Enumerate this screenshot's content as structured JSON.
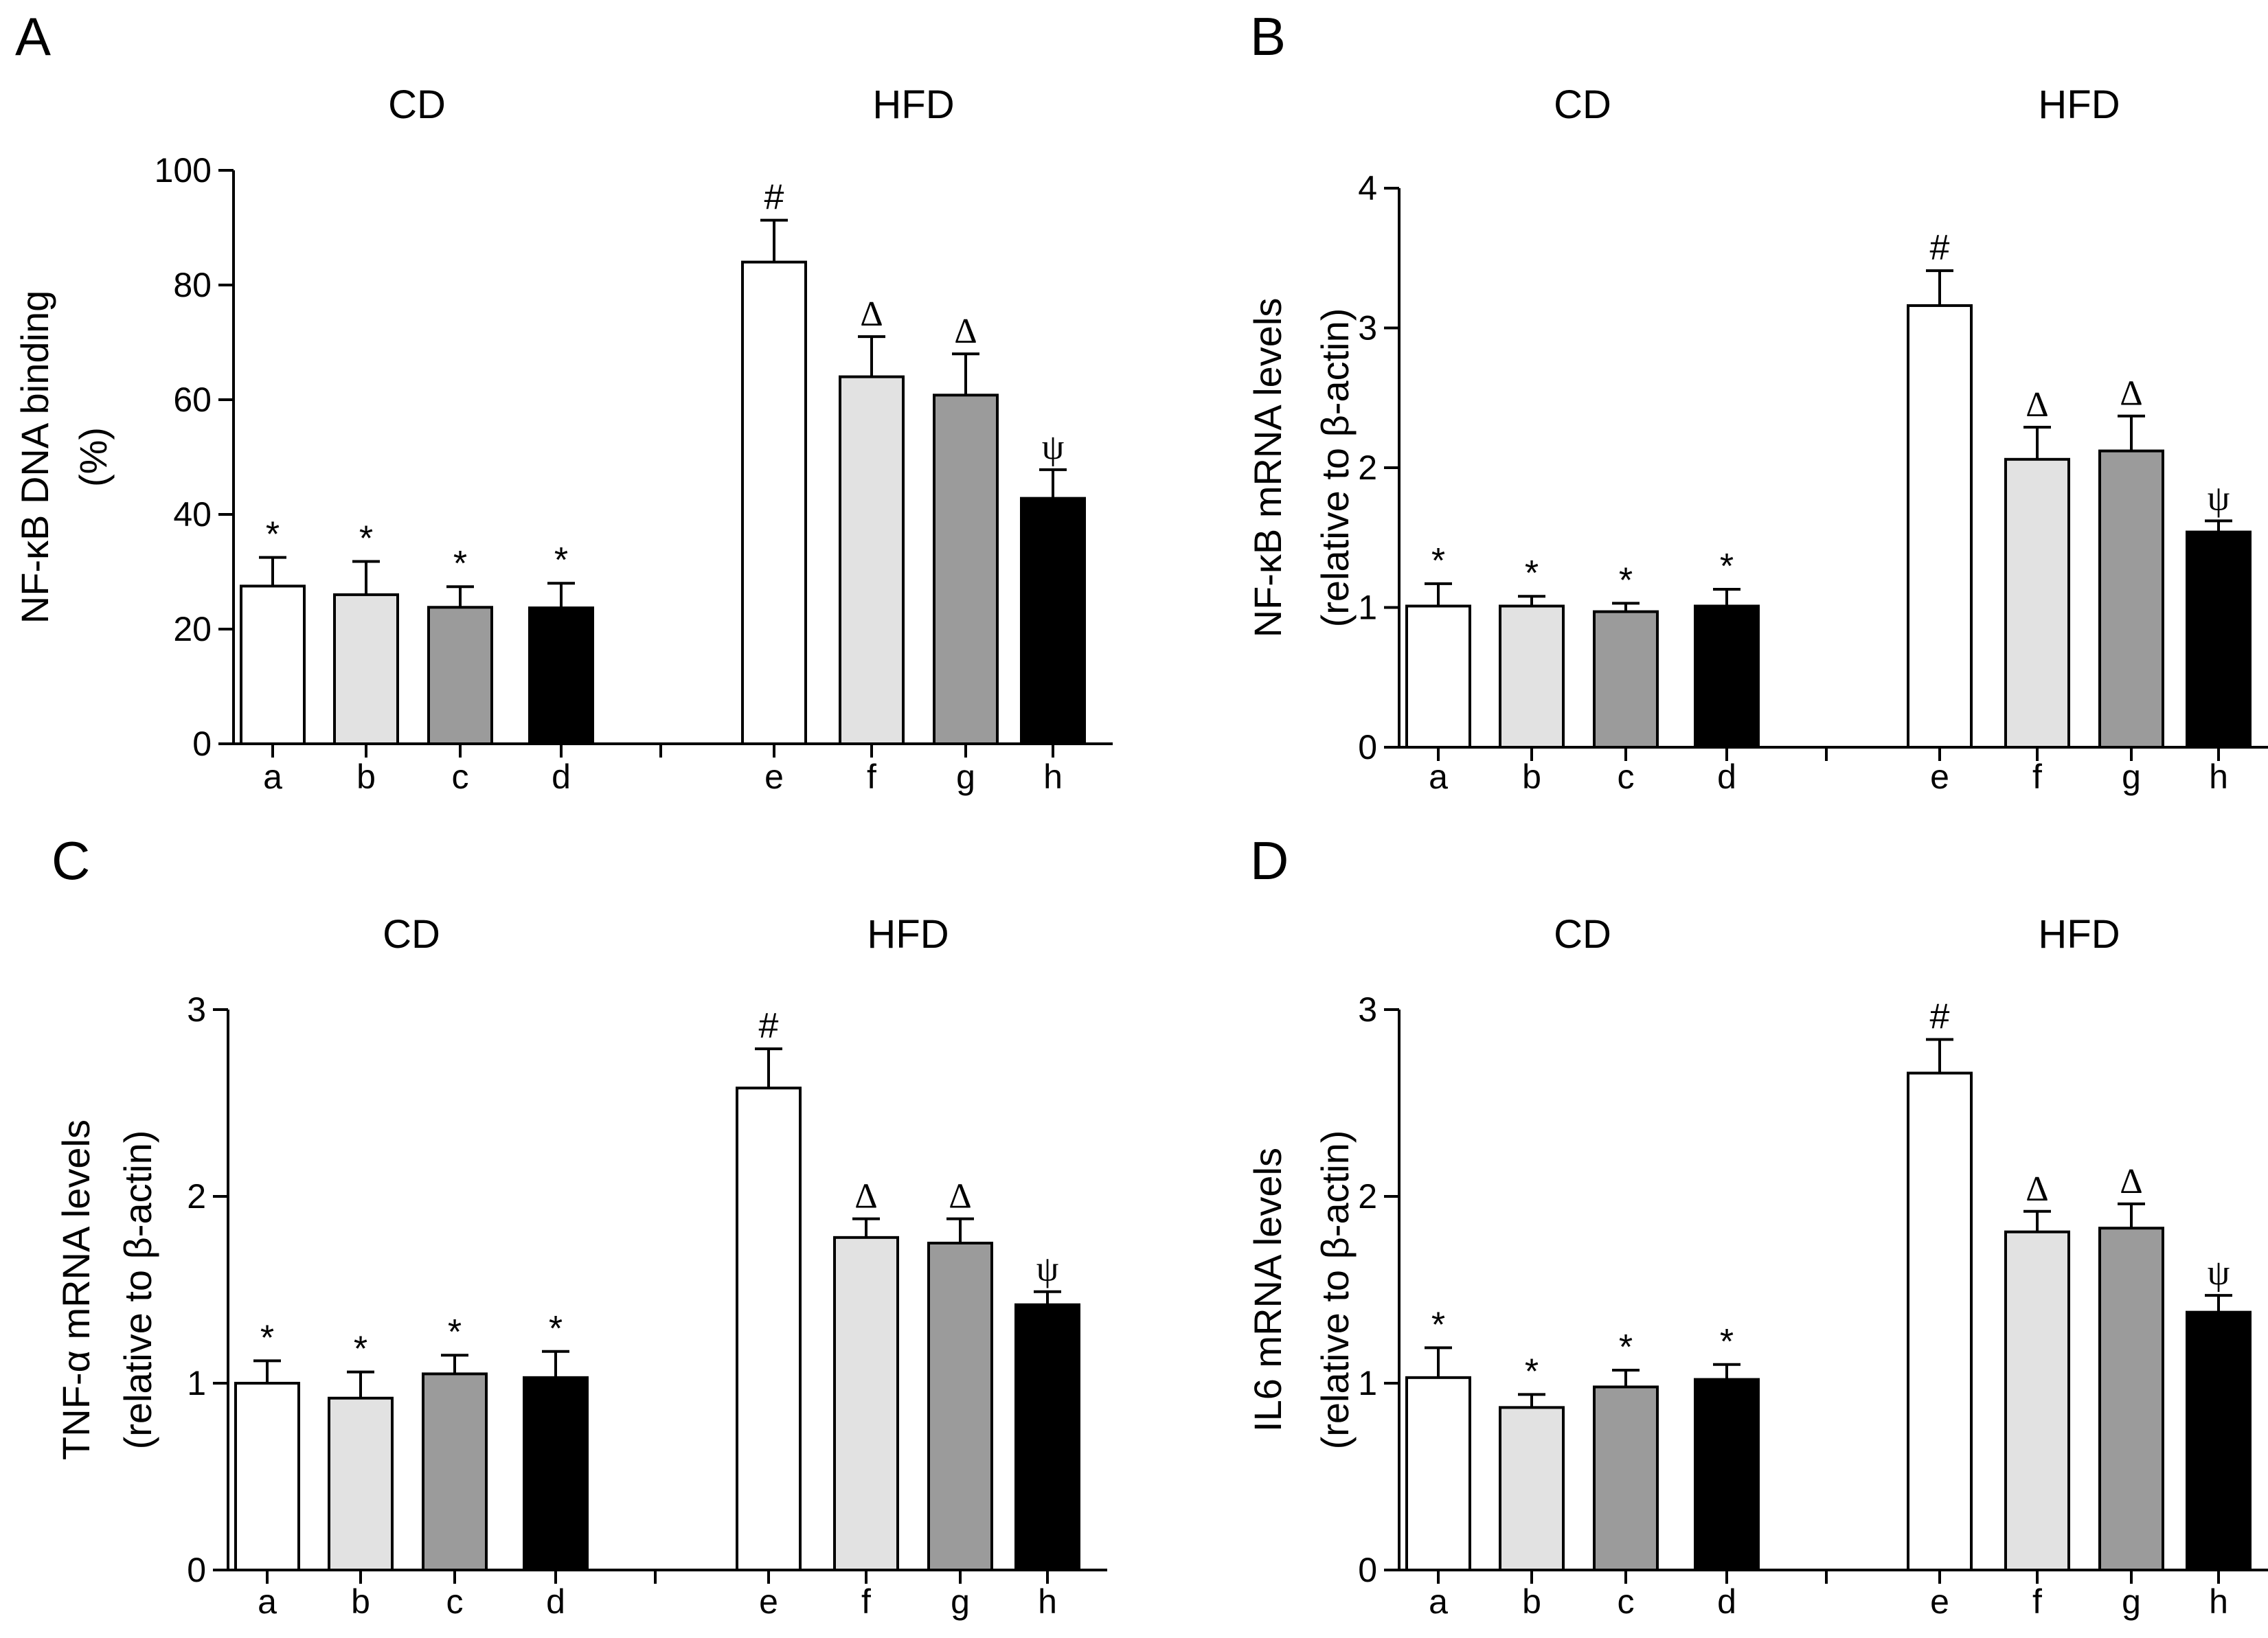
{
  "figure": {
    "categories": [
      "a",
      "b",
      "c",
      "d",
      "e",
      "f",
      "g",
      "h"
    ],
    "groups": [
      "CD",
      "HFD"
    ],
    "fills": [
      "#ffffff",
      "#e2e2e2",
      "#9b9b9b",
      "#000000",
      "#ffffff",
      "#e2e2e2",
      "#9b9b9b",
      "#000000"
    ]
  },
  "chart_data": [
    {
      "panel": "A",
      "type": "bar",
      "ylabel_lines": [
        "NF-κB DNA binding",
        "(%)"
      ],
      "ylim": [
        0,
        100
      ],
      "yticks": [
        0,
        20,
        40,
        60,
        80,
        100
      ],
      "categories": [
        "a",
        "b",
        "c",
        "d",
        "e",
        "f",
        "g",
        "h"
      ],
      "groups": [
        "CD",
        "HFD"
      ],
      "values": [
        27.5,
        26,
        23.8,
        23.7,
        84,
        64,
        60.8,
        42.8
      ],
      "errors": [
        5,
        5.8,
        3.6,
        4.3,
        7.3,
        7,
        7.2,
        5
      ],
      "annotations": [
        "*",
        "*",
        "*",
        "*",
        "#",
        "Δ",
        "Δ",
        "ψ"
      ]
    },
    {
      "panel": "B",
      "type": "bar",
      "ylabel_lines": [
        "NF-κB mRNA levels",
        "(relative to β-actin)"
      ],
      "ylim": [
        0,
        4
      ],
      "yticks": [
        0,
        1,
        2,
        3,
        4
      ],
      "categories": [
        "a",
        "b",
        "c",
        "d",
        "e",
        "f",
        "g",
        "h"
      ],
      "groups": [
        "CD",
        "HFD"
      ],
      "values": [
        1.01,
        1.01,
        0.97,
        1.01,
        3.16,
        2.06,
        2.12,
        1.54
      ],
      "errors": [
        0.16,
        0.07,
        0.06,
        0.12,
        0.25,
        0.23,
        0.25,
        0.08
      ],
      "annotations": [
        "*",
        "*",
        "*",
        "*",
        "#",
        "Δ",
        "Δ",
        "ψ"
      ]
    },
    {
      "panel": "C",
      "type": "bar",
      "ylabel_lines": [
        "TNF-α mRNA levels",
        "(relative to β-actin)"
      ],
      "ylim": [
        0,
        3
      ],
      "yticks": [
        0,
        1,
        2,
        3
      ],
      "categories": [
        "a",
        "b",
        "c",
        "d",
        "e",
        "f",
        "g",
        "h"
      ],
      "groups": [
        "CD",
        "HFD"
      ],
      "values": [
        1.0,
        0.92,
        1.05,
        1.03,
        2.58,
        1.78,
        1.75,
        1.42
      ],
      "errors": [
        0.12,
        0.14,
        0.1,
        0.14,
        0.21,
        0.1,
        0.13,
        0.07
      ],
      "annotations": [
        "*",
        "*",
        "*",
        "*",
        "#",
        "Δ",
        "Δ",
        "ψ"
      ]
    },
    {
      "panel": "D",
      "type": "bar",
      "ylabel_lines": [
        "IL6 mRNA levels",
        "(relative to β-actin)"
      ],
      "ylim": [
        0,
        3
      ],
      "yticks": [
        0,
        1,
        2,
        3
      ],
      "categories": [
        "a",
        "b",
        "c",
        "d",
        "e",
        "f",
        "g",
        "h"
      ],
      "groups": [
        "CD",
        "HFD"
      ],
      "values": [
        1.03,
        0.87,
        0.98,
        1.02,
        2.66,
        1.81,
        1.83,
        1.38
      ],
      "errors": [
        0.16,
        0.07,
        0.09,
        0.08,
        0.18,
        0.11,
        0.13,
        0.09
      ],
      "annotations": [
        "*",
        "*",
        "*",
        "*",
        "#",
        "Δ",
        "Δ",
        "ψ"
      ]
    }
  ]
}
